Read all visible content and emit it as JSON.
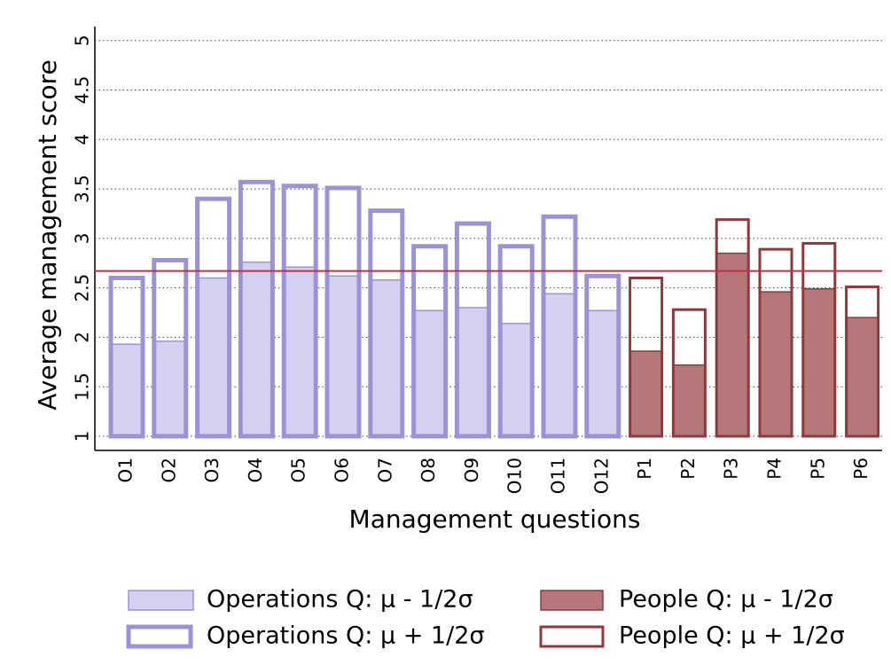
{
  "chart_data": {
    "type": "bar",
    "x_label": "Management questions",
    "y_label": "Average management score",
    "categories": [
      "O1",
      "O2",
      "O3",
      "O4",
      "O5",
      "O6",
      "O7",
      "O8",
      "O9",
      "O10",
      "O11",
      "O12",
      "P1",
      "P2",
      "P3",
      "P4",
      "P5",
      "P6"
    ],
    "series": [
      {
        "name": "Operations Q: μ - 1/2σ",
        "color": "#d4d0ef",
        "edge": "#9b93d6",
        "style": "filled",
        "values": [
          1.93,
          1.96,
          2.6,
          2.76,
          2.71,
          2.62,
          2.58,
          2.27,
          2.3,
          2.14,
          2.44,
          2.27,
          null,
          null,
          null,
          null,
          null,
          null
        ]
      },
      {
        "name": "Operations Q: μ + 1/2σ",
        "color": "#9b93d6",
        "style": "outline-thick",
        "values": [
          2.6,
          2.78,
          3.4,
          3.57,
          3.53,
          3.51,
          3.28,
          2.92,
          3.15,
          2.92,
          3.22,
          2.62,
          null,
          null,
          null,
          null,
          null,
          null
        ]
      },
      {
        "name": "People Q: μ - 1/2σ",
        "color": "#b57779",
        "edge": "#8b3a3e",
        "style": "filled",
        "values": [
          null,
          null,
          null,
          null,
          null,
          null,
          null,
          null,
          null,
          null,
          null,
          null,
          1.86,
          1.72,
          2.85,
          2.46,
          2.49,
          2.2
        ]
      },
      {
        "name": "People Q: μ + 1/2σ",
        "color": "#8b3a3e",
        "style": "outline",
        "values": [
          null,
          null,
          null,
          null,
          null,
          null,
          null,
          null,
          null,
          null,
          null,
          null,
          2.6,
          2.28,
          3.19,
          2.89,
          2.95,
          2.51
        ]
      }
    ],
    "reference_line": 2.67,
    "reference_color": "#c0304a",
    "ylim": [
      1,
      5.15
    ],
    "yticks": [
      1,
      1.5,
      2,
      2.5,
      3,
      3.5,
      4,
      4.5,
      5
    ],
    "grid": true
  }
}
